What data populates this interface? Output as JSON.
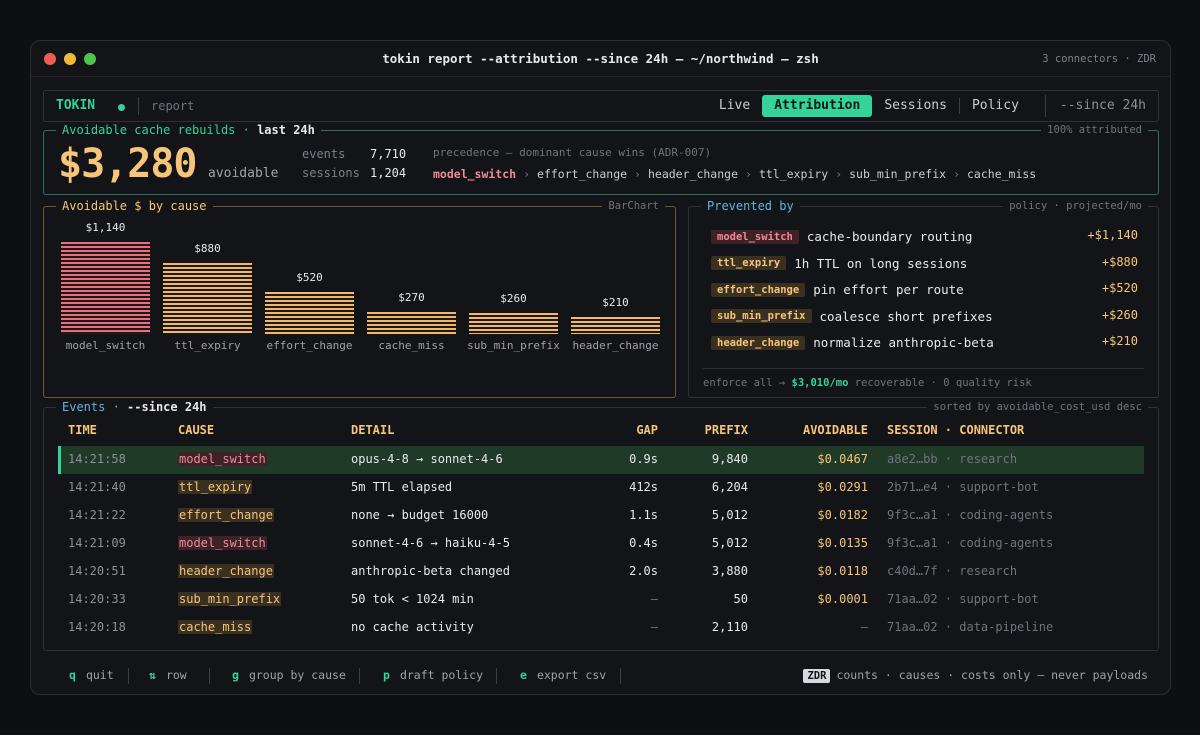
{
  "window": {
    "title": "tokin report --attribution --since 24h — ~/northwind — zsh",
    "right": "3 connectors · ZDR"
  },
  "topbar": {
    "brand": "TOKIN",
    "crumb": "report",
    "tabs": [
      "Live",
      "Attribution",
      "Sessions",
      "Policy"
    ],
    "active_tab": "Attribution",
    "since": "--since 24h"
  },
  "summary": {
    "title": "Avoidable cache rebuilds",
    "title_sep": " · ",
    "period": "last 24h",
    "attributed": "100% attributed",
    "amount": "$3,280",
    "amount_label": "avoidable",
    "events_label": "events",
    "events_value": "7,710",
    "sessions_label": "sessions",
    "sessions_value": "1,204",
    "precedence": "precedence — dominant cause wins (ADR-007)",
    "chain": [
      "model_switch",
      "effort_change",
      "header_change",
      "ttl_expiry",
      "sub_min_prefix",
      "cache_miss"
    ],
    "chain_sep": "›"
  },
  "chart_panel": {
    "title": "Avoidable $ by cause",
    "right": "BarChart"
  },
  "chart_data": {
    "type": "bar",
    "title": "Avoidable $ by cause",
    "categories": [
      "model_switch",
      "ttl_expiry",
      "effort_change",
      "cache_miss",
      "sub_min_prefix",
      "header_change"
    ],
    "values": [
      1140,
      880,
      520,
      270,
      260,
      210
    ],
    "value_labels": [
      "$1,140",
      "$880",
      "$520",
      "$270",
      "$260",
      "$210"
    ],
    "colors": [
      "#e8707e",
      "#f3b86e",
      "#f3b86e",
      "#f3b86e",
      "#f3b86e",
      "#f3b86e"
    ],
    "ylim": [
      0,
      1140
    ],
    "grid": false
  },
  "prevented": {
    "title": "Prevented by",
    "right": "policy · projected/mo",
    "items": [
      {
        "cause": "model_switch",
        "label": "cache-boundary routing",
        "amount": "+$1,140",
        "tone": "red"
      },
      {
        "cause": "ttl_expiry",
        "label": "1h TTL on long sessions",
        "amount": "+$880",
        "tone": "amber"
      },
      {
        "cause": "effort_change",
        "label": "pin effort per route",
        "amount": "+$520",
        "tone": "amber"
      },
      {
        "cause": "sub_min_prefix",
        "label": "coalesce short prefixes",
        "amount": "+$260",
        "tone": "amber"
      },
      {
        "cause": "header_change",
        "label": "normalize anthropic-beta",
        "amount": "+$210",
        "tone": "amber"
      }
    ],
    "enforce_prefix": "enforce all →",
    "enforce_amount": "$3,010/mo",
    "enforce_suffix": "recoverable · 0 quality risk"
  },
  "events": {
    "title": "Events",
    "title_sep": " · ",
    "since": "--since 24h",
    "sort": "sorted by avoidable_cost_usd desc",
    "columns": [
      "TIME",
      "CAUSE",
      "DETAIL",
      "GAP",
      "PREFIX",
      "AVOIDABLE",
      "SESSION · CONNECTOR"
    ],
    "rows": [
      {
        "time": "14:21:58",
        "cause": "model_switch",
        "tone": "red",
        "detail": "opus-4-8 → sonnet-4-6",
        "gap": "0.9s",
        "prefix": "9,840",
        "avoidable": "$0.0467",
        "session": "a8e2…bb · research"
      },
      {
        "time": "14:21:40",
        "cause": "ttl_expiry",
        "tone": "amber",
        "detail": "5m TTL elapsed",
        "gap": "412s",
        "prefix": "6,204",
        "avoidable": "$0.0291",
        "session": "2b71…e4 · support-bot"
      },
      {
        "time": "14:21:22",
        "cause": "effort_change",
        "tone": "amber",
        "detail": "none → budget 16000",
        "gap": "1.1s",
        "prefix": "5,012",
        "avoidable": "$0.0182",
        "session": "9f3c…a1 · coding-agents"
      },
      {
        "time": "14:21:09",
        "cause": "model_switch",
        "tone": "red",
        "detail": "sonnet-4-6 → haiku-4-5",
        "gap": "0.4s",
        "prefix": "5,012",
        "avoidable": "$0.0135",
        "session": "9f3c…a1 · coding-agents"
      },
      {
        "time": "14:20:51",
        "cause": "header_change",
        "tone": "amber",
        "detail": "anthropic-beta changed",
        "gap": "2.0s",
        "prefix": "3,880",
        "avoidable": "$0.0118",
        "session": "c40d…7f · research"
      },
      {
        "time": "14:20:33",
        "cause": "sub_min_prefix",
        "tone": "amber",
        "detail": "50 tok < 1024 min",
        "gap": "—",
        "prefix": "50",
        "avoidable": "$0.0001",
        "session": "71aa…02 · support-bot"
      },
      {
        "time": "14:20:18",
        "cause": "cache_miss",
        "tone": "amber",
        "detail": "no cache activity",
        "gap": "—",
        "prefix": "2,110",
        "avoidable": "—",
        "session": "71aa…02 · data-pipeline"
      }
    ]
  },
  "footer": {
    "keys": [
      {
        "key": "q",
        "label": "quit"
      },
      {
        "key": "⇅",
        "label": "row"
      },
      {
        "key": "g",
        "label": "group by cause"
      },
      {
        "key": "p",
        "label": "draft policy"
      },
      {
        "key": "e",
        "label": "export csv"
      }
    ],
    "zdr": "ZDR",
    "note": "counts · causes · costs only — never payloads"
  },
  "colors": {
    "accent": "#34d399",
    "amber": "#f6c47a",
    "red": "#f08a9a",
    "blue": "#5fb5e0",
    "selected_row": "#1f3a26"
  }
}
